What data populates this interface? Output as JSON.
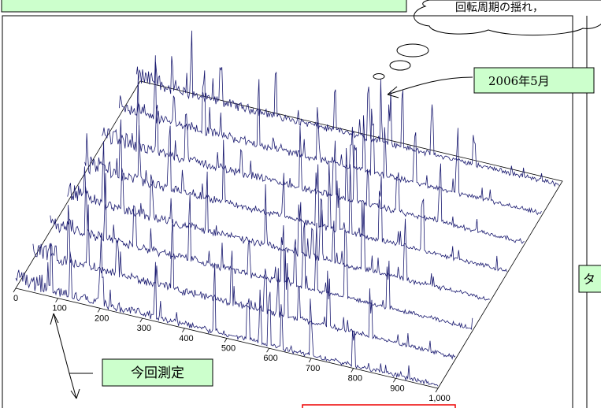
{
  "cloud_text": "回転周期の揺れ，",
  "callout_date": "2006年5月",
  "callout_current": "今回測定",
  "side_label": "タ",
  "axis": {
    "ticks": [
      "0",
      "100",
      "200",
      "300",
      "400",
      "500",
      "600",
      "700",
      "800",
      "900",
      "1,000"
    ]
  }
}
